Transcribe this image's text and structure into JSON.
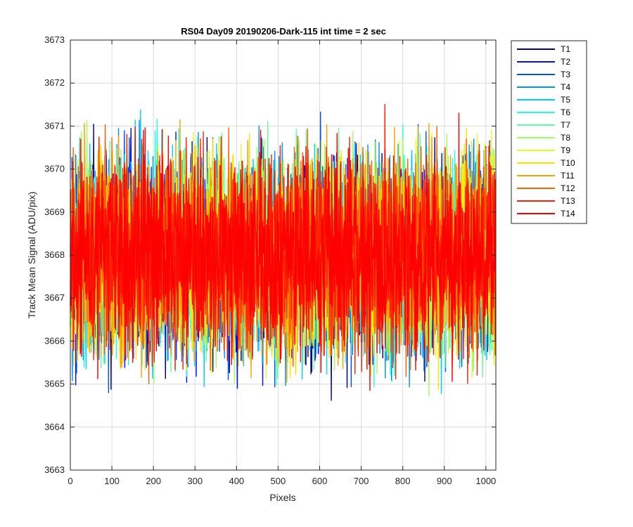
{
  "chart_data": {
    "type": "line",
    "title": "RS04 Day09 20190206-Dark-115 int time = 2 sec",
    "xlabel": "Pixels",
    "ylabel": "Track Mean Signal (ADU/pix)",
    "xlim": [
      0,
      1024
    ],
    "ylim": [
      3663,
      3673
    ],
    "xticks": [
      0,
      100,
      200,
      300,
      400,
      500,
      600,
      700,
      800,
      900,
      1000
    ],
    "yticks": [
      3663,
      3664,
      3665,
      3666,
      3667,
      3668,
      3669,
      3670,
      3671,
      3672,
      3673
    ],
    "grid": true,
    "legend_position": "outside-top-right",
    "noise": {
      "n_points": 1024,
      "mean": 3668.0,
      "sd": 1.1,
      "min": 3664.0,
      "max": 3672.5
    },
    "series": [
      {
        "name": "T1",
        "color": "#00008f"
      },
      {
        "name": "T2",
        "color": "#0010ff"
      },
      {
        "name": "T3",
        "color": "#0050ff"
      },
      {
        "name": "T4",
        "color": "#0090ff"
      },
      {
        "name": "T5",
        "color": "#00d0ff"
      },
      {
        "name": "T6",
        "color": "#20ffdf"
      },
      {
        "name": "T7",
        "color": "#60ffa0"
      },
      {
        "name": "T8",
        "color": "#a0ff60"
      },
      {
        "name": "T9",
        "color": "#dfff20"
      },
      {
        "name": "T10",
        "color": "#ffe000"
      },
      {
        "name": "T11",
        "color": "#ffa000"
      },
      {
        "name": "T12",
        "color": "#ff6000"
      },
      {
        "name": "T13",
        "color": "#ff2000"
      },
      {
        "name": "T14",
        "color": "#ff0000"
      }
    ]
  }
}
